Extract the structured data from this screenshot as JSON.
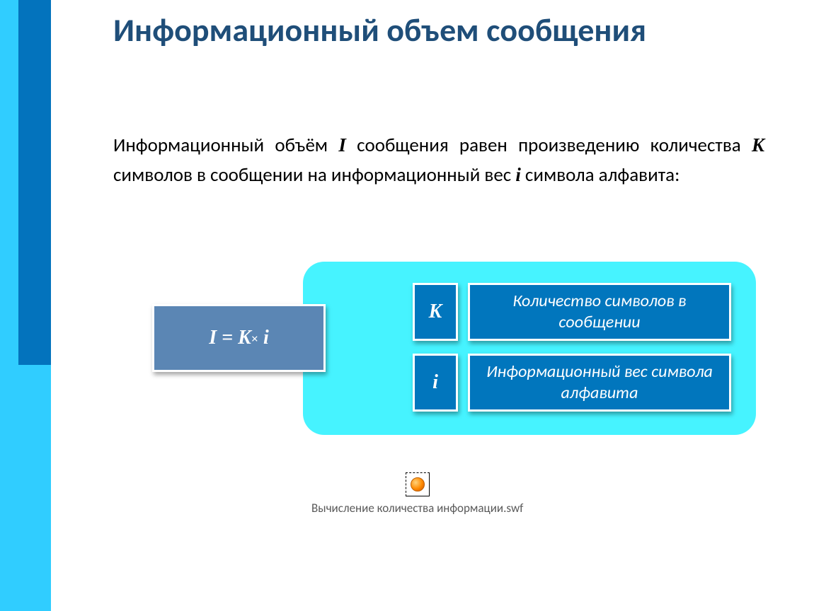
{
  "colors": {
    "sidebar_outer": "#30cdff",
    "sidebar_inner": "#0373bd",
    "title": "#1f4e79",
    "body_text": "#000000",
    "diagram_bg": "#46f3ff",
    "formula_box_bg": "#5b86b4",
    "legend_box_bg": "#0176bd",
    "box_border": "#ffffff",
    "attachment_text": "#5a5a5a"
  },
  "typography": {
    "title_fontsize": 46,
    "body_fontsize": 27,
    "formula_fontsize": 28,
    "legend_key_fontsize": 28,
    "legend_desc_fontsize": 24,
    "attachment_fontsize": 17
  },
  "title": "Информационный объем сообщения",
  "body": {
    "seg1": "Информационный объём ",
    "var1": "I",
    "seg2": " сообщения равен произведению количества ",
    "var2": "K",
    "seg3": " символов в сообщении на информационный вес ",
    "var3": "i",
    "seg4": " символа алфавита:"
  },
  "formula": {
    "lhs": "I",
    "eq": " = ",
    "k": "K",
    "times": "×",
    "sp": " ",
    "i": "i"
  },
  "legend": {
    "k": {
      "symbol": "K",
      "desc": "Количество символов в сообщении"
    },
    "i": {
      "symbol": "i",
      "desc": "Информационный вес символа алфавита"
    }
  },
  "attachment": {
    "label": "Вычисление количества информации.swf"
  }
}
